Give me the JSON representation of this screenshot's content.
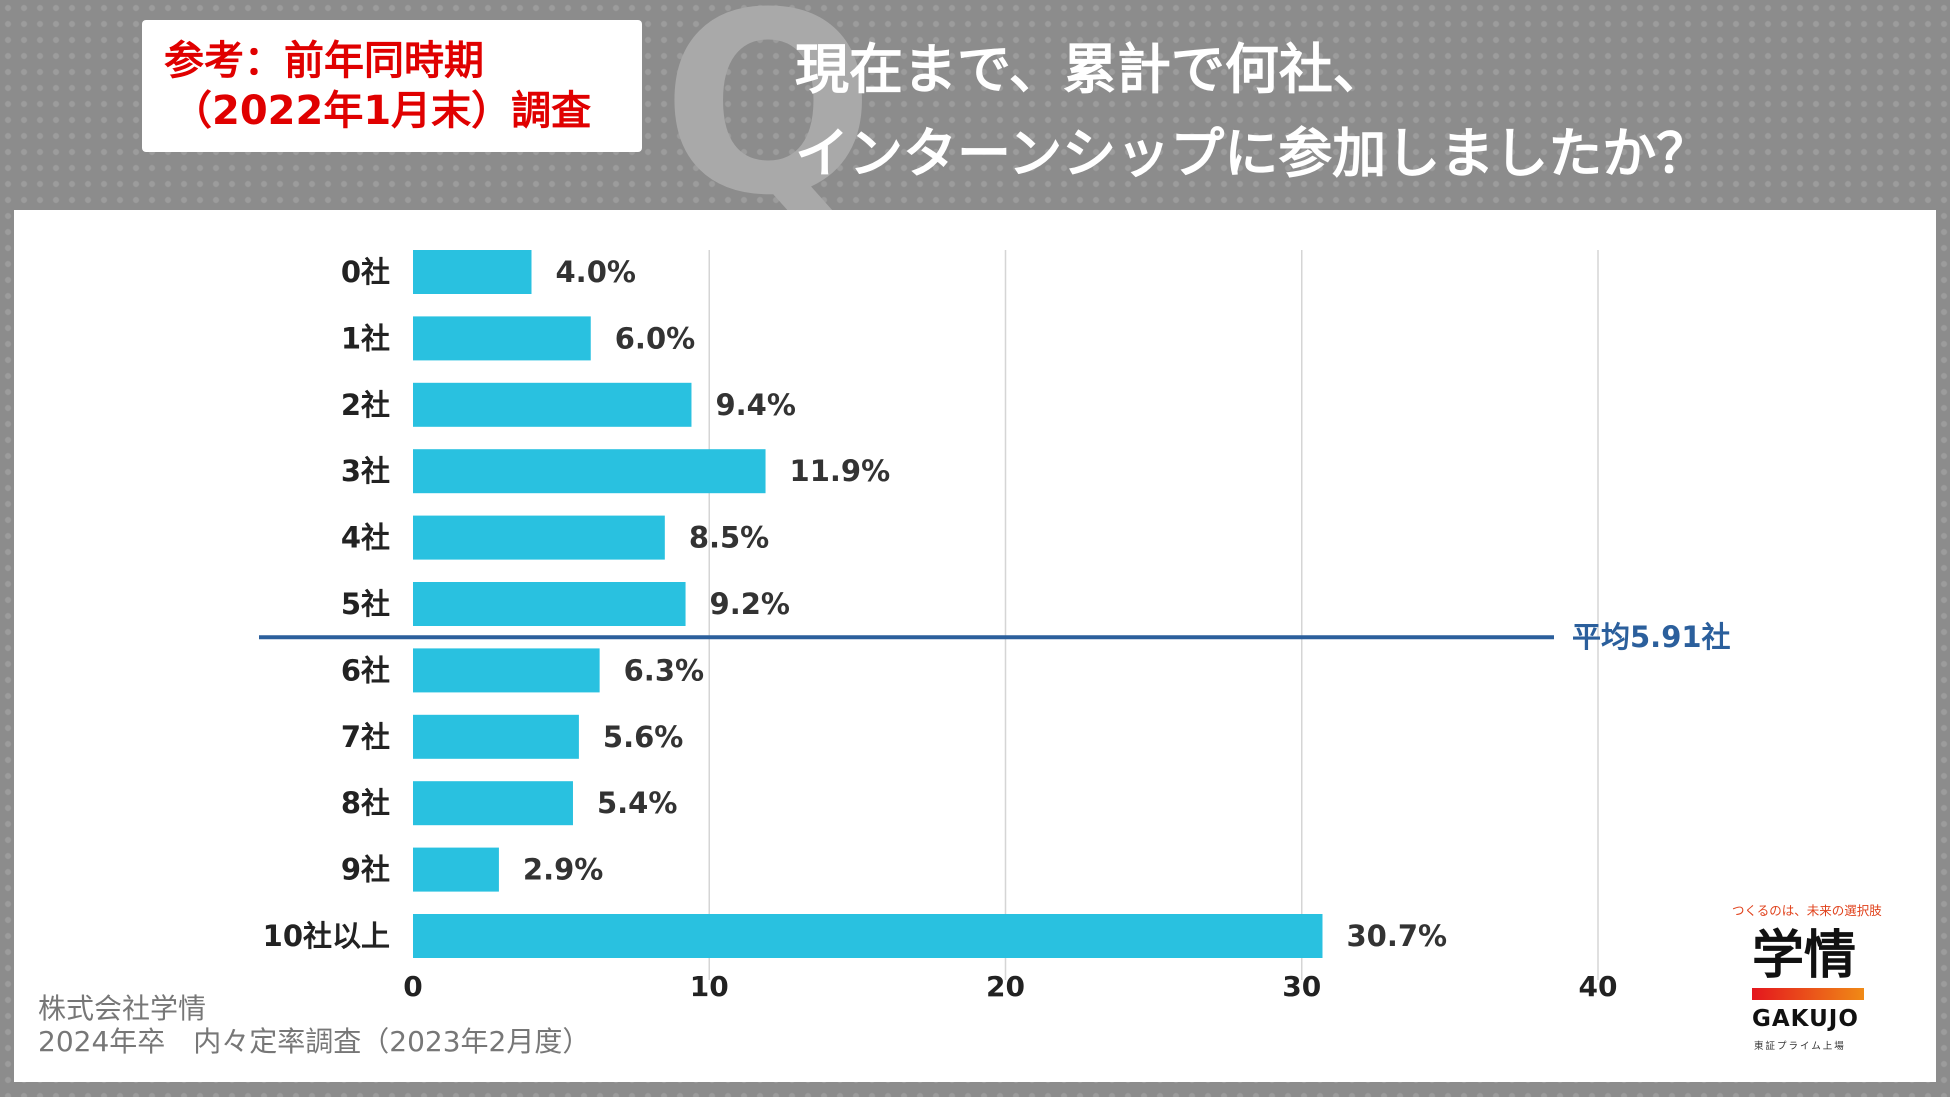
{
  "reference_box": {
    "line1": "参考：前年同時期",
    "line2": "（2022年1月末）調査"
  },
  "q_mark": "Q",
  "title": {
    "line1": "現在まで、累計で何社、",
    "line2": "インターンシップに参加しましたか？"
  },
  "footer": {
    "line1": "株式会社学情",
    "line2": "2024年卒　内々定率調査（2023年2月度）"
  },
  "logo": {
    "tagline": "つくるのは、未来の選択肢",
    "kanji": "学情",
    "english": "GAKUJO",
    "sub": "東証プライム上場"
  },
  "colors": {
    "bar": "#29c1e0",
    "average_line": "#2b5f9c",
    "reference_text": "#e00000",
    "grid": "#d5d5d5"
  },
  "chart_data": {
    "type": "bar",
    "orientation": "horizontal",
    "categories": [
      "0社",
      "1社",
      "2社",
      "3社",
      "4社",
      "5社",
      "6社",
      "7社",
      "8社",
      "9社",
      "10社以上"
    ],
    "values": [
      4.0,
      6.0,
      9.4,
      11.9,
      8.5,
      9.2,
      6.3,
      5.6,
      5.4,
      2.9,
      30.7
    ],
    "value_labels": [
      "4.0%",
      "6.0%",
      "9.4%",
      "11.9%",
      "8.5%",
      "9.2%",
      "6.3%",
      "5.6%",
      "5.4%",
      "2.9%",
      "30.7%"
    ],
    "xlim": [
      0,
      40
    ],
    "xticks": [
      "0",
      "10",
      "20",
      "30",
      "40"
    ],
    "grid": true,
    "average_line": {
      "label": "平均5.91社",
      "between_categories": [
        "5社",
        "6社"
      ]
    }
  }
}
